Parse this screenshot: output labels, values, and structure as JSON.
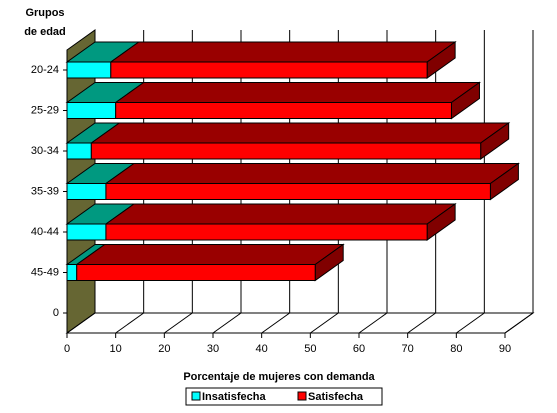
{
  "chart_data": {
    "type": "bar3d",
    "ylabel": "Grupos de edad",
    "xlabel": "Porcentaje de mujeres con demanda",
    "categories": [
      "20-24",
      "25-29",
      "30-34",
      "35-39",
      "40-44",
      "45-49",
      "0"
    ],
    "series": [
      {
        "name": "Insatisfecha",
        "color": "#00ffff",
        "values": [
          9,
          10,
          5,
          8,
          8,
          2,
          null
        ]
      },
      {
        "name": "Satisfecha",
        "color": "#ff0000",
        "values": [
          65,
          69,
          80,
          79,
          66,
          49,
          null
        ]
      }
    ],
    "xlim": [
      0,
      90
    ],
    "xticks": [
      0,
      10,
      20,
      30,
      40,
      50,
      60,
      70,
      80,
      90
    ],
    "grid": true,
    "stacked": true
  }
}
